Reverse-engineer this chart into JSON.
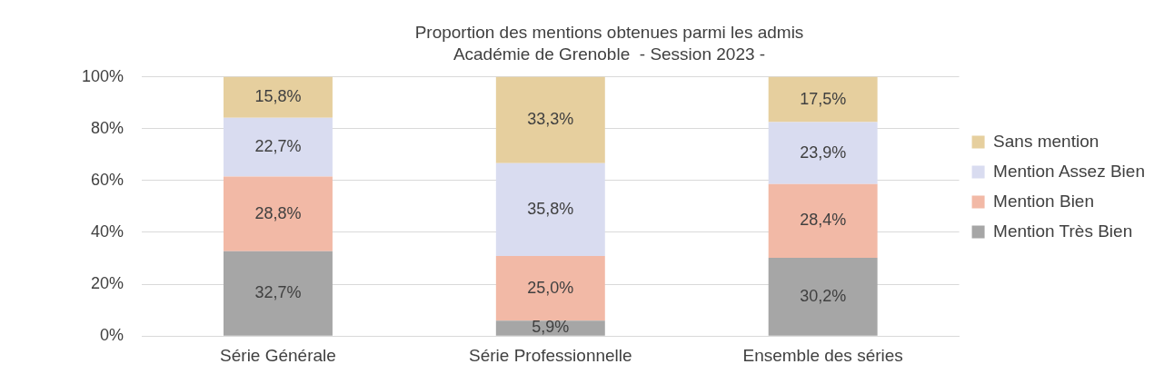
{
  "chart_data": {
    "type": "bar",
    "title": "Proportion des mentions obtenues parmi les admis",
    "subtitle": "Académie de Grenoble  - Session 2023 -",
    "categories": [
      "Série Générale",
      "Série Professionnelle",
      "Ensemble des séries"
    ],
    "stacked": true,
    "series": [
      {
        "name": "Mention Très Bien",
        "color": "#a6a6a6",
        "values": [
          32.7,
          5.9,
          30.2
        ],
        "value_labels": [
          "32,7%",
          "5,9%",
          "30,2%"
        ]
      },
      {
        "name": "Mention Bien",
        "color": "#f2b9a6",
        "values": [
          28.8,
          25.0,
          28.4
        ],
        "value_labels": [
          "28,8%",
          "25,0%",
          "28,4%"
        ]
      },
      {
        "name": "Mention Assez Bien",
        "color": "#d9dcf0",
        "values": [
          22.7,
          35.8,
          23.9
        ],
        "value_labels": [
          "22,7%",
          "35,8%",
          "23,9%"
        ]
      },
      {
        "name": "Sans mention",
        "color": "#e6cf9e",
        "values": [
          15.8,
          33.3,
          17.5
        ],
        "value_labels": [
          "15,8%",
          "33,3%",
          "17,5%"
        ]
      }
    ],
    "ylim": [
      0,
      100
    ],
    "yticks": [
      {
        "value": 0,
        "label": "0%"
      },
      {
        "value": 20,
        "label": "20%"
      },
      {
        "value": 40,
        "label": "40%"
      },
      {
        "value": 60,
        "label": "60%"
      },
      {
        "value": 80,
        "label": "80%"
      },
      {
        "value": 100,
        "label": "100%"
      }
    ],
    "grid": "y",
    "legend": "right"
  }
}
